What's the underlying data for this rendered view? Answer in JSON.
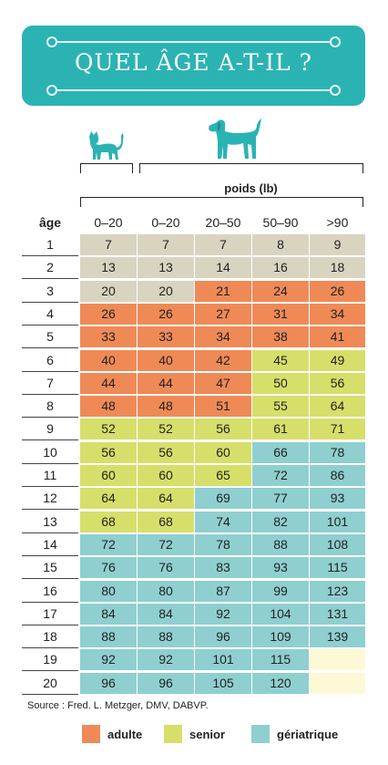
{
  "title": "QUEL ÂGE A-T-IL ?",
  "weight_label": "poids (lb)",
  "age_header": "âge",
  "column_headers": [
    "0–20",
    "0–20",
    "20–50",
    "50–90",
    ">90"
  ],
  "icons": [
    "cat-icon",
    "dog-icon"
  ],
  "colors": {
    "banner": "#2bb3b4",
    "kitten": "#d8d4c0",
    "adult": "#ef8a57",
    "senior": "#d6df6a",
    "geriatric": "#8fcfd0",
    "empty": "#fdf9d6"
  },
  "rows": [
    {
      "age": "1",
      "values": [
        "7",
        "7",
        "7",
        "8",
        "9"
      ],
      "classes": [
        "k",
        "k",
        "k",
        "k",
        "k"
      ]
    },
    {
      "age": "2",
      "values": [
        "13",
        "13",
        "14",
        "16",
        "18"
      ],
      "classes": [
        "k",
        "k",
        "k",
        "k",
        "k"
      ]
    },
    {
      "age": "3",
      "values": [
        "20",
        "20",
        "21",
        "24",
        "26"
      ],
      "classes": [
        "k",
        "k",
        "a",
        "a",
        "a"
      ]
    },
    {
      "age": "4",
      "values": [
        "26",
        "26",
        "27",
        "31",
        "34"
      ],
      "classes": [
        "a",
        "a",
        "a",
        "a",
        "a"
      ]
    },
    {
      "age": "5",
      "values": [
        "33",
        "33",
        "34",
        "38",
        "41"
      ],
      "classes": [
        "a",
        "a",
        "a",
        "a",
        "a"
      ]
    },
    {
      "age": "6",
      "values": [
        "40",
        "40",
        "42",
        "45",
        "49"
      ],
      "classes": [
        "a",
        "a",
        "a",
        "s",
        "s"
      ]
    },
    {
      "age": "7",
      "values": [
        "44",
        "44",
        "47",
        "50",
        "56"
      ],
      "classes": [
        "a",
        "a",
        "a",
        "s",
        "s"
      ]
    },
    {
      "age": "8",
      "values": [
        "48",
        "48",
        "51",
        "55",
        "64"
      ],
      "classes": [
        "a",
        "a",
        "a",
        "s",
        "s"
      ]
    },
    {
      "age": "9",
      "values": [
        "52",
        "52",
        "56",
        "61",
        "71"
      ],
      "classes": [
        "s",
        "s",
        "s",
        "s",
        "s"
      ]
    },
    {
      "age": "10",
      "values": [
        "56",
        "56",
        "60",
        "66",
        "78"
      ],
      "classes": [
        "s",
        "s",
        "s",
        "g",
        "g"
      ]
    },
    {
      "age": "11",
      "values": [
        "60",
        "60",
        "65",
        "72",
        "86"
      ],
      "classes": [
        "s",
        "s",
        "s",
        "g",
        "g"
      ]
    },
    {
      "age": "12",
      "values": [
        "64",
        "64",
        "69",
        "77",
        "93"
      ],
      "classes": [
        "s",
        "s",
        "g",
        "g",
        "g"
      ]
    },
    {
      "age": "13",
      "values": [
        "68",
        "68",
        "74",
        "82",
        "101"
      ],
      "classes": [
        "s",
        "s",
        "g",
        "g",
        "g"
      ]
    },
    {
      "age": "14",
      "values": [
        "72",
        "72",
        "78",
        "88",
        "108"
      ],
      "classes": [
        "g",
        "g",
        "g",
        "g",
        "g"
      ]
    },
    {
      "age": "15",
      "values": [
        "76",
        "76",
        "83",
        "93",
        "115"
      ],
      "classes": [
        "g",
        "g",
        "g",
        "g",
        "g"
      ]
    },
    {
      "age": "16",
      "values": [
        "80",
        "80",
        "87",
        "99",
        "123"
      ],
      "classes": [
        "g",
        "g",
        "g",
        "g",
        "g"
      ]
    },
    {
      "age": "17",
      "values": [
        "84",
        "84",
        "92",
        "104",
        "131"
      ],
      "classes": [
        "g",
        "g",
        "g",
        "g",
        "g"
      ]
    },
    {
      "age": "18",
      "values": [
        "88",
        "88",
        "96",
        "109",
        "139"
      ],
      "classes": [
        "g",
        "g",
        "g",
        "g",
        "g"
      ]
    },
    {
      "age": "19",
      "values": [
        "92",
        "92",
        "101",
        "115",
        ""
      ],
      "classes": [
        "g",
        "g",
        "g",
        "g",
        "e"
      ]
    },
    {
      "age": "20",
      "values": [
        "96",
        "96",
        "105",
        "120",
        ""
      ],
      "classes": [
        "g",
        "g",
        "g",
        "g",
        "e"
      ]
    }
  ],
  "source": "Source : Fred. L. Metzger, DMV, DABVP.",
  "legend": [
    {
      "label": "adulte",
      "key": "adult"
    },
    {
      "label": "senior",
      "key": "senior"
    },
    {
      "label": "gériatrique",
      "key": "geriatric"
    }
  ]
}
